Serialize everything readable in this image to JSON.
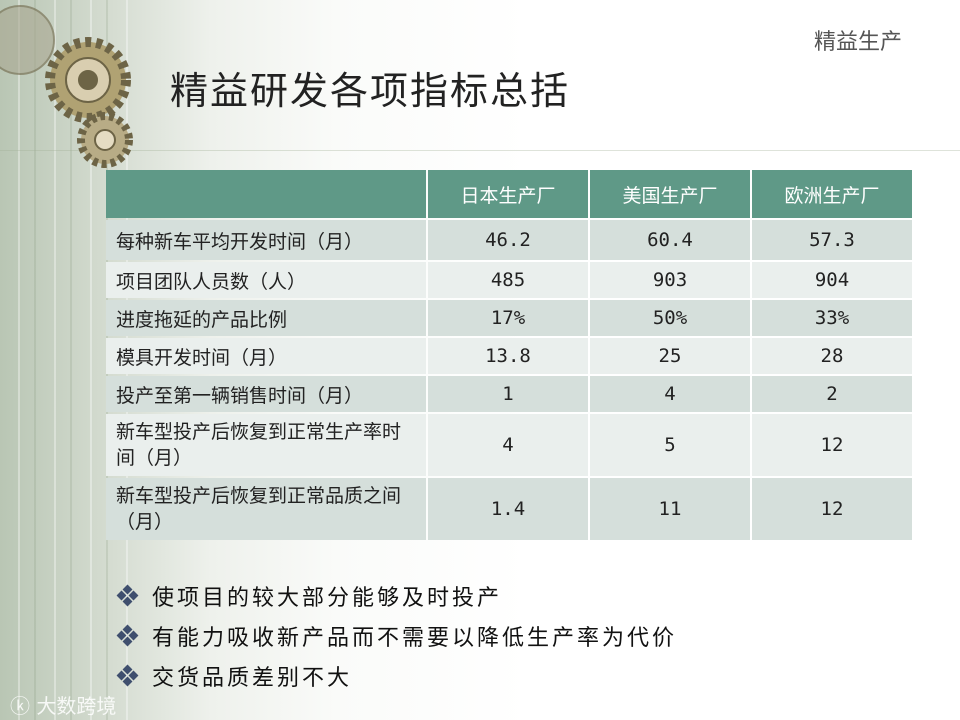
{
  "corner_label": "精益生产",
  "title": "精益研发各项指标总括",
  "table": {
    "headers": [
      "",
      "日本生产厂",
      "美国生产厂",
      "欧洲生产厂"
    ],
    "rows": [
      [
        "每种新车平均开发时间（月）",
        "46.2",
        "60.4",
        "57.3"
      ],
      [
        "项目团队人员数（人）",
        "485",
        "903",
        "904"
      ],
      [
        "进度拖延的产品比例",
        "17%",
        "50%",
        "33%"
      ],
      [
        "模具开发时间（月）",
        "13.8",
        "25",
        "28"
      ],
      [
        "投产至第一辆销售时间（月）",
        "1",
        "4",
        "2"
      ],
      [
        "新车型投产后恢复到正常生产率时间（月）",
        "4",
        "5",
        "12"
      ],
      [
        "新车型投产后恢复到正常品质之间（月）",
        "1.4",
        "11",
        "12"
      ]
    ]
  },
  "bullets": [
    "使项目的较大部分能够及时投产",
    "有能力吸收新产品而不需要以降低生产率为代价",
    "交货品质差别不大"
  ],
  "watermark": "大数跨境",
  "colors": {
    "header": "#5f9987",
    "row_odd": "#d5dfdb",
    "row_even": "#eaefed",
    "bullet": "#3f4f6e"
  }
}
